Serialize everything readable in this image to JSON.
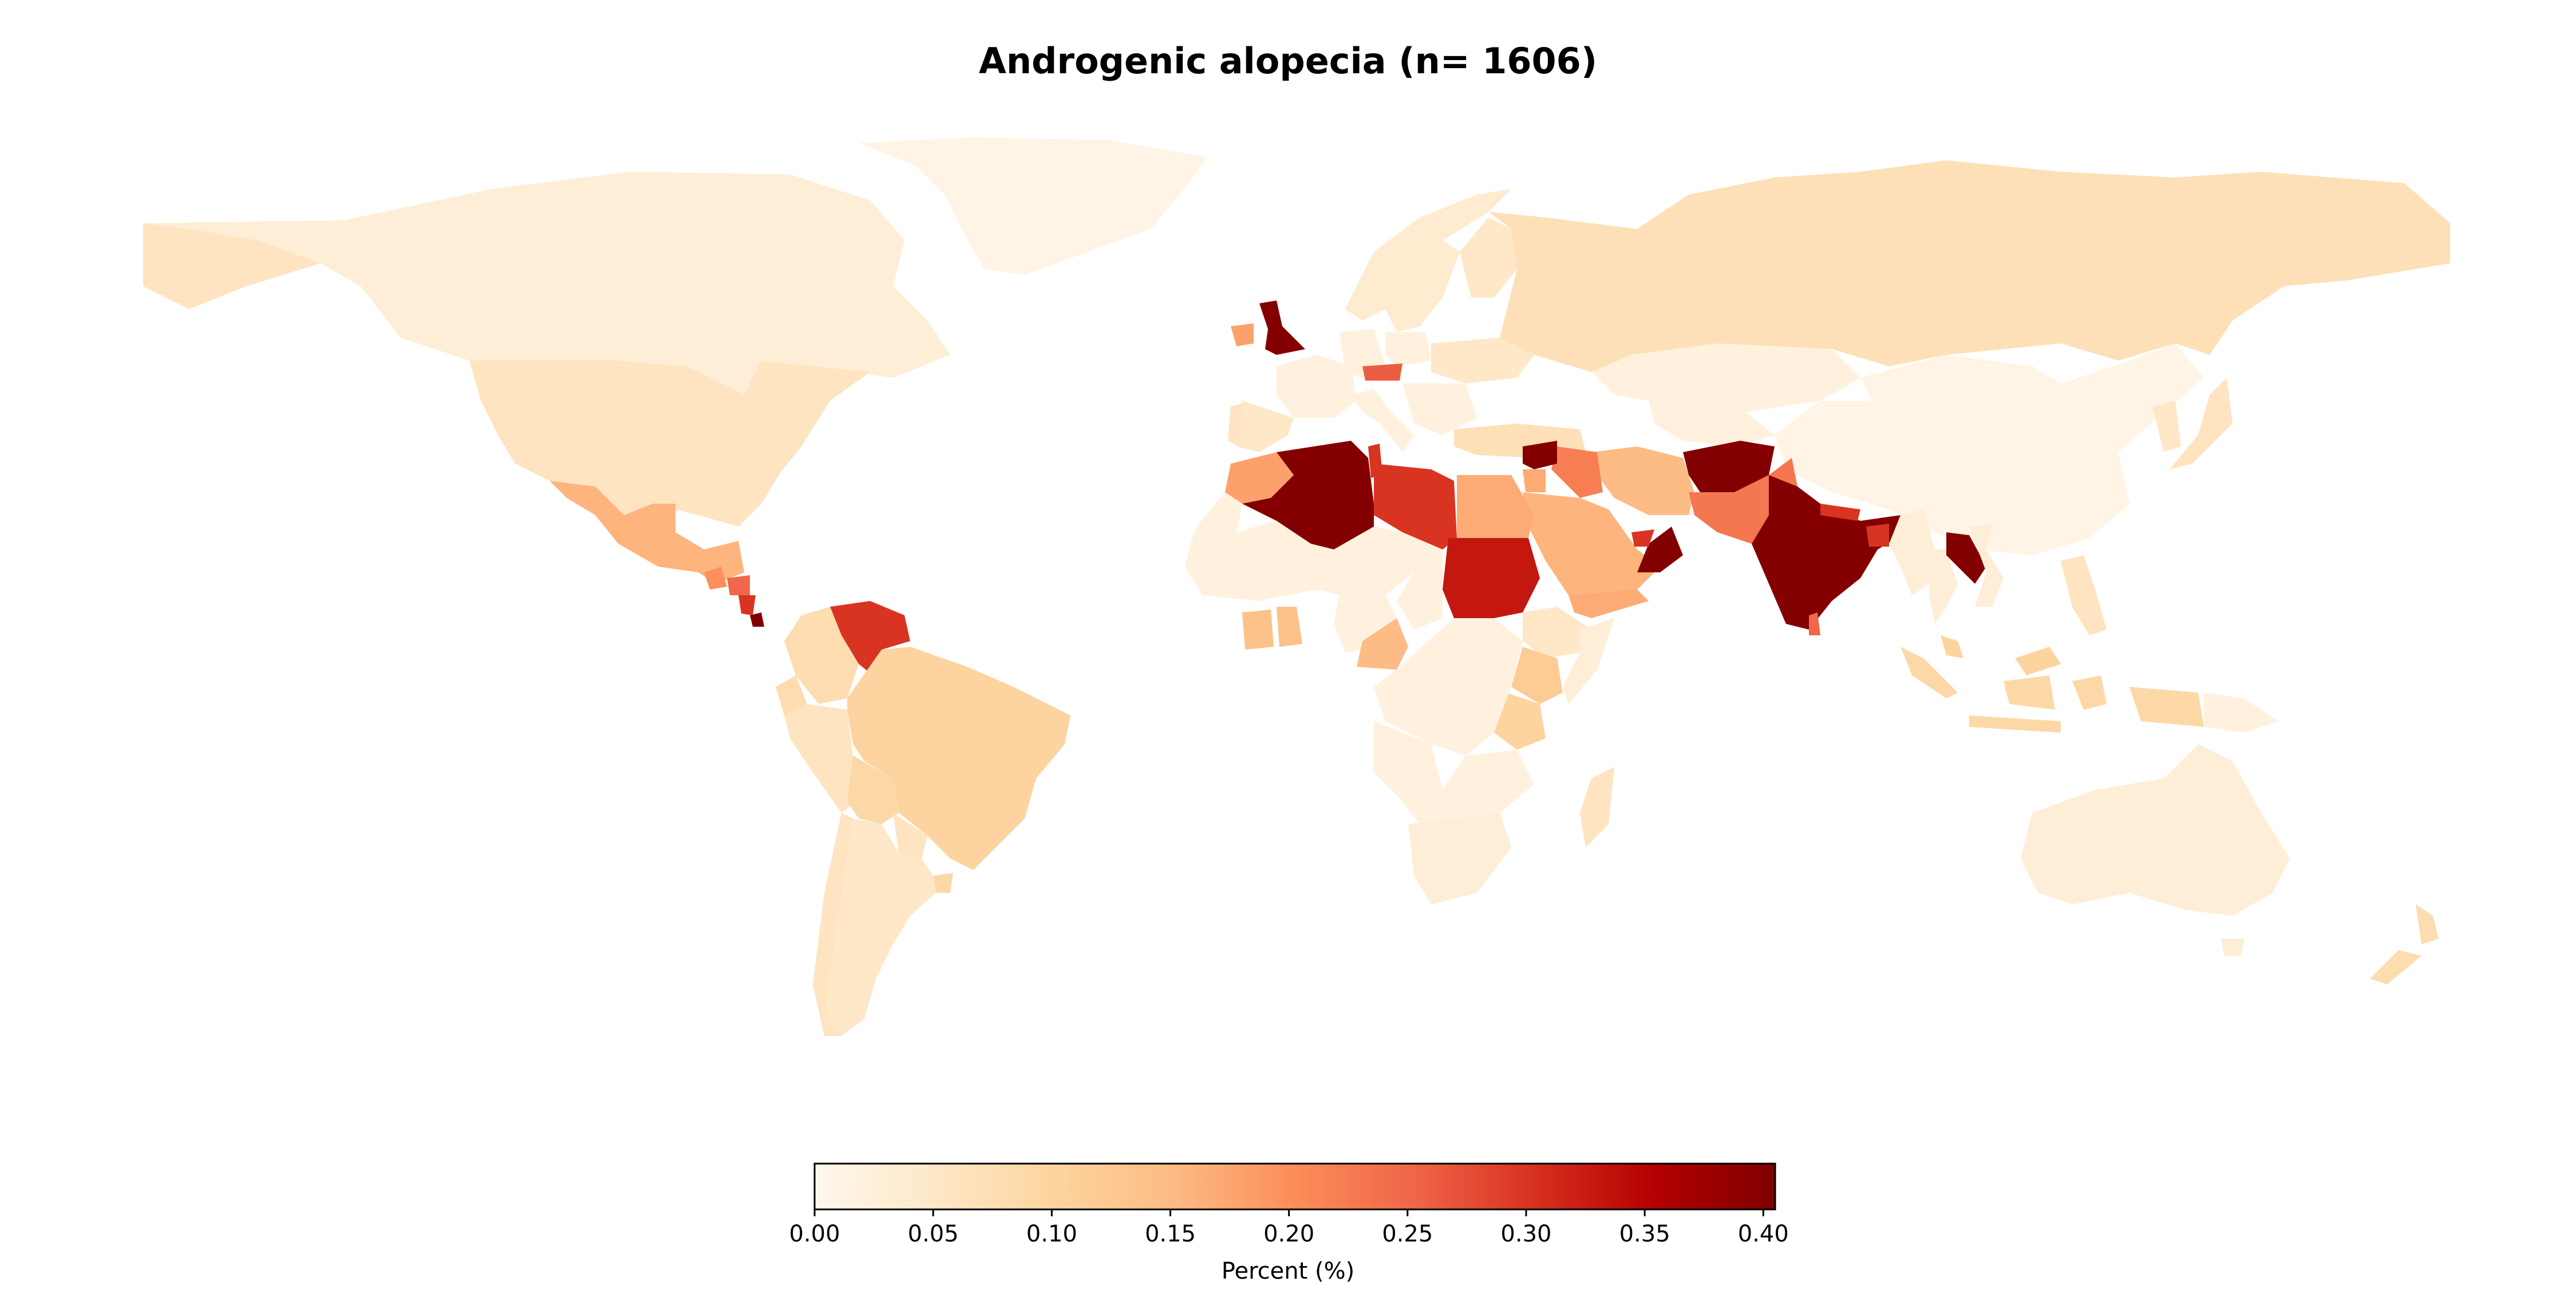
{
  "title": "Androgenic alopecia (n= 1606)",
  "colorbar": {
    "label": "Percent (%)",
    "min": 0.0,
    "max": 0.405,
    "ticks": [
      0.0,
      0.05,
      0.1,
      0.15,
      0.2,
      0.25,
      0.3,
      0.35,
      0.4
    ],
    "tick_labels": [
      "0.00",
      "0.05",
      "0.10",
      "0.15",
      "0.20",
      "0.25",
      "0.30",
      "0.35",
      "0.40"
    ],
    "colormap": "OrRd",
    "stops": [
      "#fff7ec",
      "#fee8c8",
      "#fdd49e",
      "#fdbb84",
      "#fc8d59",
      "#ef6548",
      "#d7301f",
      "#b30000",
      "#7f0000"
    ]
  },
  "chart_data": {
    "type": "choropleth",
    "title": "Androgenic alopecia (n= 1606)",
    "value_label": "Percent (%)",
    "range": [
      0.0,
      0.405
    ],
    "values_by_country": {
      "Canada": 0.03,
      "United States": 0.06,
      "Greenland": 0.01,
      "Mexico": 0.16,
      "Guatemala": 0.2,
      "Honduras": 0.25,
      "Nicaragua": 0.3,
      "Panama": 0.4,
      "Venezuela": 0.3,
      "Colombia": 0.08,
      "Ecuador": 0.08,
      "Peru": 0.06,
      "Brazil": 0.1,
      "Bolivia": 0.09,
      "Chile": 0.06,
      "Argentina": 0.05,
      "Paraguay": 0.06,
      "Uruguay": 0.09,
      "United Kingdom": 0.4,
      "Ireland": 0.18,
      "France": 0.02,
      "Spain": 0.05,
      "Portugal": 0.06,
      "Germany": 0.02,
      "Austria": 0.26,
      "Italy": 0.02,
      "Norway": 0.04,
      "Sweden": 0.04,
      "Finland": 0.05,
      "Poland": 0.02,
      "Ukraine": 0.05,
      "Turkey": 0.07,
      "Russia": 0.07,
      "Kazakhstan": 0.02,
      "China": 0.01,
      "Mongolia": 0.01,
      "Japan": 0.06,
      "Korea": 0.05,
      "Morocco": 0.18,
      "Algeria": 0.4,
      "Tunisia": 0.3,
      "Libya": 0.3,
      "Egypt": 0.17,
      "Sudan": 0.33,
      "Western Sahara": 0.02,
      "Mali": 0.02,
      "Niger": 0.02,
      "Chad": 0.02,
      "Nigeria": 0.02,
      "Ghana": 0.14,
      "Cote d'Ivoire": 0.14,
      "Cameroon": 0.15,
      "Ethiopia": 0.05,
      "Somalia": 0.03,
      "Yemen": 0.17,
      "Kenya": 0.12,
      "Tanzania": 0.1,
      "DR Congo": 0.02,
      "Angola": 0.02,
      "South Africa": 0.03,
      "Madagascar": 0.06,
      "Saudi Arabia": 0.16,
      "Iraq": 0.22,
      "Syria": 0.4,
      "Jordan": 0.17,
      "Iran": 0.15,
      "Oman": 0.4,
      "UAE": 0.3,
      "Afghanistan": 0.4,
      "Pakistan": 0.23,
      "India": 0.4,
      "Nepal": 0.3,
      "Bangladesh": 0.3,
      "Sri Lanka": 0.25,
      "Myanmar": 0.03,
      "Thailand": 0.03,
      "Laos": 0.4,
      "Vietnam": 0.03,
      "Malaysia": 0.1,
      "Indonesia": 0.09,
      "Philippines": 0.06,
      "Papua New Guinea": 0.02,
      "Australia": 0.03,
      "New Zealand": 0.08
    }
  }
}
